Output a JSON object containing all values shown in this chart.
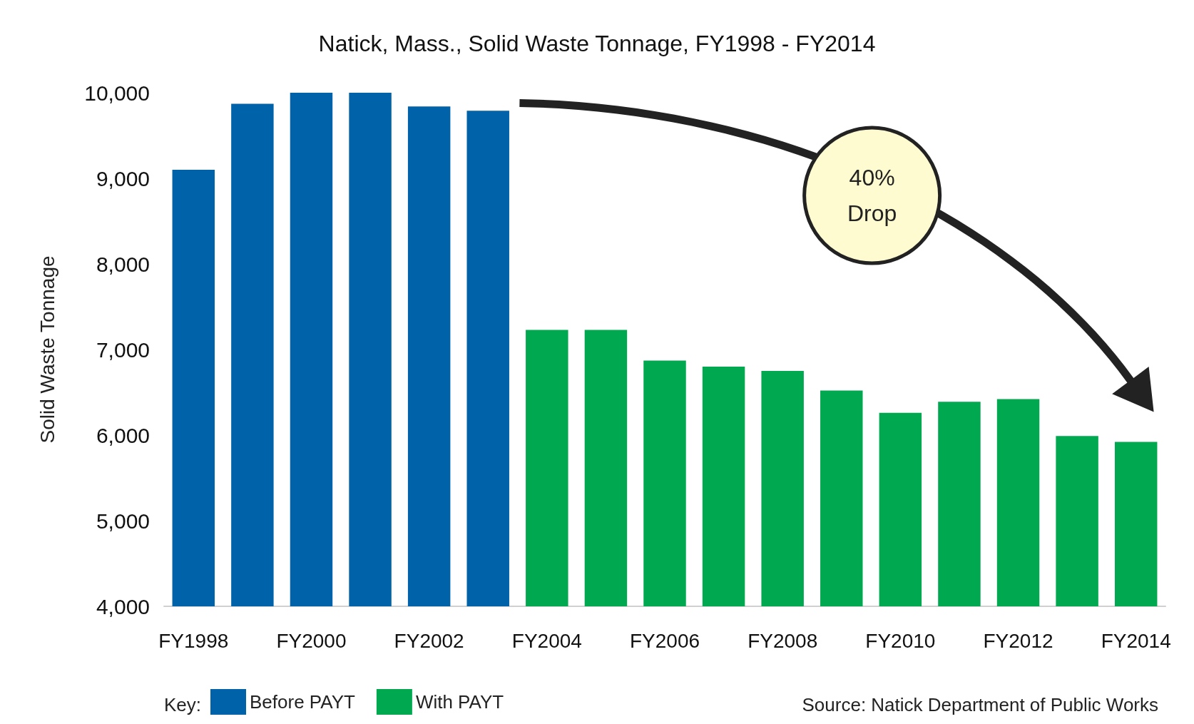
{
  "chart_data": {
    "type": "bar",
    "title": "Natick, Mass., Solid Waste Tonnage, FY1998 - FY2014",
    "ylabel": "Solid Waste Tonnage",
    "legend_title": "Key:",
    "categories": [
      "FY1998",
      null,
      "FY2000",
      null,
      "FY2002",
      null,
      "FY2004",
      null,
      "FY2006",
      null,
      "FY2008",
      null,
      "FY2010",
      null,
      "FY2012",
      null,
      "FY2014"
    ],
    "series": [
      {
        "name": "Before PAYT",
        "color": "#0062a8",
        "values": [
          9100,
          9870,
          10000,
          10000,
          9840,
          9790,
          null,
          null,
          null,
          null,
          null,
          null,
          null,
          null,
          null,
          null,
          null
        ]
      },
      {
        "name": "With PAYT",
        "color": "#00a84f",
        "values": [
          null,
          null,
          null,
          null,
          null,
          null,
          7230,
          7230,
          6870,
          6800,
          6750,
          6520,
          6260,
          6390,
          6420,
          5990,
          5920
        ]
      }
    ],
    "ylim": [
      4000,
      10000
    ],
    "yticks": [
      {
        "value": 4000,
        "label": "4,000"
      },
      {
        "value": 5000,
        "label": "5,000"
      },
      {
        "value": 6000,
        "label": "6,000"
      },
      {
        "value": 7000,
        "label": "7,000"
      },
      {
        "value": 8000,
        "label": "8,000"
      },
      {
        "value": 9000,
        "label": "9,000"
      },
      {
        "value": 10000,
        "label": "10,000"
      }
    ],
    "grid": false,
    "legend": "bottom left",
    "annotations": [
      "40% Drop",
      "Source: Natick Department of Public Works"
    ]
  }
}
